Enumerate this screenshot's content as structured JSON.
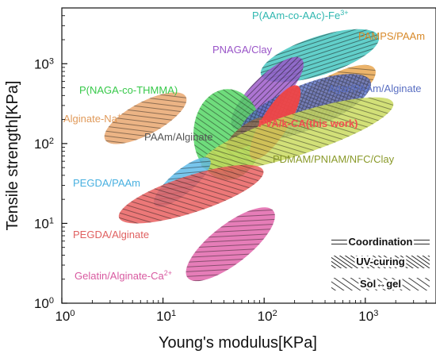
{
  "chart_data": {
    "type": "scatter",
    "subtype": "region-ellipses (Ashby plot)",
    "xlabel": "Young's modulus[KPa]",
    "ylabel": "Tensile strength[KPa]",
    "xscale": "log",
    "yscale": "log",
    "xlim": [
      1,
      5000
    ],
    "ylim": [
      1,
      5000
    ],
    "x_ticks": [
      {
        "v": 1,
        "base": "10",
        "exp": "0"
      },
      {
        "v": 10,
        "base": "10",
        "exp": "1"
      },
      {
        "v": 100,
        "base": "10",
        "exp": "2"
      },
      {
        "v": 1000,
        "base": "10",
        "exp": "3"
      }
    ],
    "y_ticks": [
      {
        "v": 1,
        "base": "10",
        "exp": "0"
      },
      {
        "v": 10,
        "base": "10",
        "exp": "1"
      },
      {
        "v": 100,
        "base": "10",
        "exp": "2"
      },
      {
        "v": 1000,
        "base": "10",
        "exp": "3"
      }
    ],
    "grid": false,
    "legend_position": "bottom-right",
    "legend": [
      {
        "label": "Coordination",
        "pattern": "horizontal"
      },
      {
        "label": "UV-curing",
        "pattern": "diagonal-dense"
      },
      {
        "label": "Sol↔gel",
        "pattern": "diagonal"
      }
    ],
    "series": [
      {
        "name": "P(AAm-co-AAc)-Fe",
        "superscript": "3+",
        "color": "#3fc4be",
        "pattern": "horizontal",
        "x_range": [
          110,
          1150
        ],
        "y_range": [
          470,
          3400
        ],
        "label_color": "#2fb7b0"
      },
      {
        "name": "PAMPS/PAAm",
        "color": "#e8a34a",
        "pattern": "diagonal",
        "x_range": [
          180,
          1150
        ],
        "y_range": [
          170,
          1000
        ],
        "label_color": "#d88a2a"
      },
      {
        "name": "PNAGA/Clay",
        "color": "#9a55c8",
        "pattern": "horizontal",
        "x_range": [
          55,
          210
        ],
        "y_range": [
          140,
          1300
        ],
        "label_color": "#9a55c8"
      },
      {
        "name": "P(NAGA-co-THMMA)",
        "color": "#4fd45f",
        "pattern": "diagonal",
        "x_range": [
          20,
          95
        ],
        "y_range": [
          35,
          480
        ],
        "label_color": "#37c94a"
      },
      {
        "name": "Agar/PAAm/Alginate",
        "color": "#5b72c8",
        "pattern": "crosshatch",
        "x_range": [
          70,
          950
        ],
        "y_range": [
          90,
          900
        ],
        "label_color": "#5a6fc2"
      },
      {
        "name": "Alginate-Na",
        "superscript": "+",
        "color": "#e8a36a",
        "pattern": "diagonal",
        "x_range": [
          3,
          15
        ],
        "y_range": [
          90,
          480
        ],
        "label_color": "#e09a5a"
      },
      {
        "name": "PAAm/Alginate",
        "color": "#8d6a4a",
        "pattern": "diagonal",
        "x_range": [
          45,
          110
        ],
        "y_range": [
          80,
          220
        ],
        "label_color": "#555555"
      },
      {
        "name": "PVA/k-CA(this work)",
        "color": "#f04545",
        "pattern": "solid",
        "x_range": [
          75,
          220
        ],
        "y_range": [
          65,
          520
        ],
        "label_color": "#f05050"
      },
      {
        "name": "PDMAM/PNIAM/NFC/Clay",
        "color": "#c8d95a",
        "pattern": "diagonal",
        "x_range": [
          25,
          1800
        ],
        "y_range": [
          45,
          380
        ],
        "label_color": "#8a9a2a"
      },
      {
        "name": "PEGDA/PAAm",
        "color": "#5ab8e8",
        "pattern": "diagonal",
        "x_range": [
          8,
          30
        ],
        "y_range": [
          18,
          60
        ],
        "label_color": "#48b0e0"
      },
      {
        "name": "PEGDA/Alginate",
        "color": "#e85a5a",
        "pattern": "diagonal",
        "x_range": [
          4,
          90
        ],
        "y_range": [
          9,
          60
        ],
        "label_color": "#e06060"
      },
      {
        "name": "Gelatin/Alginate-Ca",
        "superscript": "2+",
        "color": "#e060a8",
        "pattern": "diagonal",
        "x_range": [
          18,
          120
        ],
        "y_range": [
          2,
          15
        ],
        "label_color": "#d85aa0"
      }
    ]
  }
}
